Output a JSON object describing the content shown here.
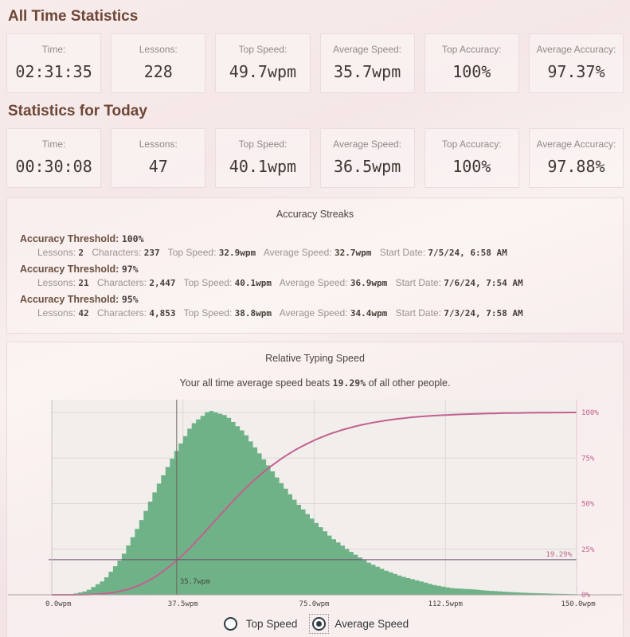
{
  "all_time": {
    "heading": "All Time Statistics",
    "cards": [
      {
        "label": "Time:",
        "value": "02:31:35"
      },
      {
        "label": "Lessons:",
        "value": "228"
      },
      {
        "label": "Top Speed:",
        "value": "49.7wpm"
      },
      {
        "label": "Average Speed:",
        "value": "35.7wpm"
      },
      {
        "label": "Top Accuracy:",
        "value": "100%"
      },
      {
        "label": "Average Accuracy:",
        "value": "97.37%"
      }
    ]
  },
  "today": {
    "heading": "Statistics for Today",
    "cards": [
      {
        "label": "Time:",
        "value": "00:30:08"
      },
      {
        "label": "Lessons:",
        "value": "47"
      },
      {
        "label": "Top Speed:",
        "value": "40.1wpm"
      },
      {
        "label": "Average Speed:",
        "value": "36.5wpm"
      },
      {
        "label": "Top Accuracy:",
        "value": "100%"
      },
      {
        "label": "Average Accuracy:",
        "value": "97.88%"
      }
    ]
  },
  "streaks": {
    "title": "Accuracy Streaks",
    "entries": [
      {
        "threshold_label": "Accuracy Threshold:",
        "threshold_value": "100%",
        "stats": [
          {
            "label": "Lessons:",
            "value": "2"
          },
          {
            "label": "Characters:",
            "value": "237"
          },
          {
            "label": "Top Speed:",
            "value": "32.9wpm"
          },
          {
            "label": "Average Speed:",
            "value": "32.7wpm"
          },
          {
            "label": "Start Date:",
            "value": "7/5/24, 6:58 AM"
          }
        ]
      },
      {
        "threshold_label": "Accuracy Threshold:",
        "threshold_value": "97%",
        "stats": [
          {
            "label": "Lessons:",
            "value": "21"
          },
          {
            "label": "Characters:",
            "value": "2,447"
          },
          {
            "label": "Top Speed:",
            "value": "40.1wpm"
          },
          {
            "label": "Average Speed:",
            "value": "36.9wpm"
          },
          {
            "label": "Start Date:",
            "value": "7/6/24, 7:54 AM"
          }
        ]
      },
      {
        "threshold_label": "Accuracy Threshold:",
        "threshold_value": "95%",
        "stats": [
          {
            "label": "Lessons:",
            "value": "42"
          },
          {
            "label": "Characters:",
            "value": "4,853"
          },
          {
            "label": "Top Speed:",
            "value": "38.8wpm"
          },
          {
            "label": "Average Speed:",
            "value": "34.4wpm"
          },
          {
            "label": "Start Date:",
            "value": "7/3/24, 7:58 AM"
          }
        ]
      }
    ]
  },
  "chart": {
    "title": "Relative Typing Speed",
    "subtitle_prefix": "Your all time average speed beats ",
    "subtitle_value": "19.29%",
    "subtitle_suffix": " of all other people.",
    "chart_data": {
      "type": "area",
      "x_unit": "wpm",
      "xlim": [
        0,
        150
      ],
      "right_axis_range": [
        0,
        100
      ],
      "grid": true,
      "x_ticks": [
        {
          "value": 0,
          "label": "0.0wpm"
        },
        {
          "value": 37.5,
          "label": "37.5wpm"
        },
        {
          "value": 75,
          "label": "75.0wpm"
        },
        {
          "value": 112.5,
          "label": "112.5wpm"
        },
        {
          "value": 150,
          "label": "150.0wpm"
        }
      ],
      "y_right_ticks": [
        {
          "value": 0,
          "label": "0%"
        },
        {
          "value": 25,
          "label": "25%"
        },
        {
          "value": 50,
          "label": "50%"
        },
        {
          "value": 75,
          "label": "75%"
        },
        {
          "value": 100,
          "label": "100%"
        }
      ],
      "series": [
        {
          "name": "speed-distribution-histogram",
          "style": "stepped-area"
        },
        {
          "name": "cumulative-percent-curve",
          "style": "line"
        }
      ],
      "density_x_step": 5,
      "density_peak_norm": 100,
      "density": [
        0,
        0,
        2,
        8,
        20,
        38,
        58,
        76,
        92,
        100,
        97,
        88,
        75,
        62,
        50,
        40,
        31,
        24,
        18,
        13.5,
        10,
        7.5,
        5,
        3.5,
        3,
        2.2,
        1.6,
        1.1,
        0.8,
        0.5,
        0.3
      ],
      "bar_width_wpm": 1.25,
      "marker": {
        "x": 35.7,
        "label": "35.7wpm"
      },
      "percentile": {
        "value": 19.29,
        "label": "19.29%"
      },
      "colors": {
        "histogram": "#6fb288",
        "cdf_line": "#c2608f",
        "percentile_line": "#6d4a6e",
        "marker_line": "#6b655f",
        "grid": "#dcd8d4",
        "axis_left": "#c9c4c0",
        "axis_bottom": "#a9a39f",
        "axis_right": "#e6c9d3",
        "tick_pink": "#c2628f",
        "tick_dark": "#4a4540",
        "plot_bg": "#f1eeeb"
      }
    },
    "controls": [
      {
        "label": "Top Speed",
        "selected": false
      },
      {
        "label": "Average Speed",
        "selected": true
      }
    ]
  }
}
